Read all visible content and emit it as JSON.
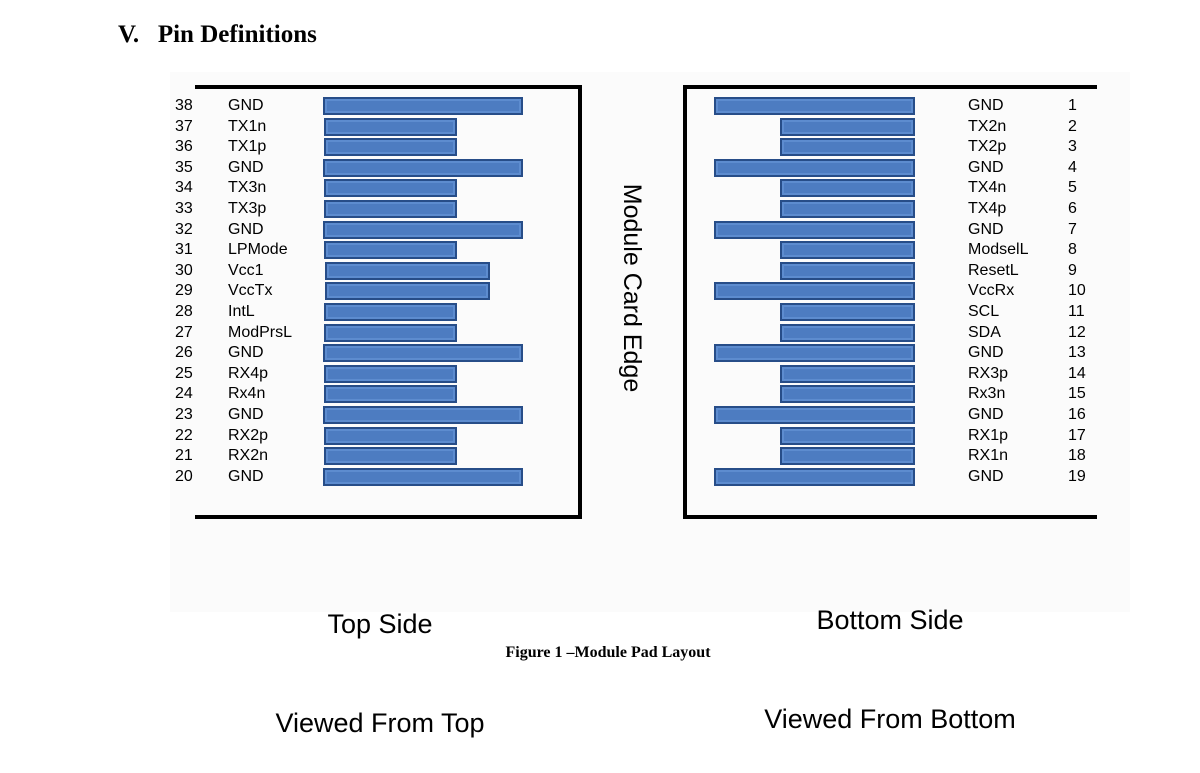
{
  "section_heading": "V.   Pin Definitions",
  "figure_caption": "Figure 1 –Module Pad Layout",
  "diagram": {
    "card_edge_label": "Module Card Edge",
    "top_side": {
      "title_line1": "Top Side",
      "title_line2": "Viewed From Top",
      "pins": [
        {
          "number": "38",
          "signal": "GND",
          "pad": "long"
        },
        {
          "number": "37",
          "signal": "TX1n",
          "pad": "short"
        },
        {
          "number": "36",
          "signal": "TX1p",
          "pad": "short"
        },
        {
          "number": "35",
          "signal": "GND",
          "pad": "long"
        },
        {
          "number": "34",
          "signal": "TX3n",
          "pad": "short"
        },
        {
          "number": "33",
          "signal": "TX3p",
          "pad": "short"
        },
        {
          "number": "32",
          "signal": "GND",
          "pad": "long"
        },
        {
          "number": "31",
          "signal": "LPMode",
          "pad": "short"
        },
        {
          "number": "30",
          "signal": "Vcc1",
          "pad": "medium"
        },
        {
          "number": "29",
          "signal": "VccTx",
          "pad": "medium"
        },
        {
          "number": "28",
          "signal": "IntL",
          "pad": "short"
        },
        {
          "number": "27",
          "signal": "ModPrsL",
          "pad": "short"
        },
        {
          "number": "26",
          "signal": "GND",
          "pad": "long"
        },
        {
          "number": "25",
          "signal": "RX4p",
          "pad": "short"
        },
        {
          "number": "24",
          "signal": "Rx4n",
          "pad": "short"
        },
        {
          "number": "23",
          "signal": "GND",
          "pad": "long"
        },
        {
          "number": "22",
          "signal": "RX2p",
          "pad": "short"
        },
        {
          "number": "21",
          "signal": "RX2n",
          "pad": "short"
        },
        {
          "number": "20",
          "signal": "GND",
          "pad": "long"
        }
      ]
    },
    "bottom_side": {
      "title_line1": "Bottom Side",
      "title_line2": "Viewed From Bottom",
      "pins": [
        {
          "number": "1",
          "signal": "GND",
          "pad": "long"
        },
        {
          "number": "2",
          "signal": "TX2n",
          "pad": "short"
        },
        {
          "number": "3",
          "signal": "TX2p",
          "pad": "short"
        },
        {
          "number": "4",
          "signal": "GND",
          "pad": "long"
        },
        {
          "number": "5",
          "signal": "TX4n",
          "pad": "short"
        },
        {
          "number": "6",
          "signal": "TX4p",
          "pad": "short"
        },
        {
          "number": "7",
          "signal": "GND",
          "pad": "long"
        },
        {
          "number": "8",
          "signal": "ModselL",
          "pad": "short"
        },
        {
          "number": "9",
          "signal": "ResetL",
          "pad": "short"
        },
        {
          "number": "10",
          "signal": "VccRx",
          "pad": "long"
        },
        {
          "number": "11",
          "signal": "SCL",
          "pad": "short"
        },
        {
          "number": "12",
          "signal": "SDA",
          "pad": "short"
        },
        {
          "number": "13",
          "signal": "GND",
          "pad": "long"
        },
        {
          "number": "14",
          "signal": "RX3p",
          "pad": "short"
        },
        {
          "number": "15",
          "signal": "Rx3n",
          "pad": "short"
        },
        {
          "number": "16",
          "signal": "GND",
          "pad": "long"
        },
        {
          "number": "17",
          "signal": "RX1p",
          "pad": "short"
        },
        {
          "number": "18",
          "signal": "RX1n",
          "pad": "short"
        },
        {
          "number": "19",
          "signal": "GND",
          "pad": "long"
        }
      ]
    }
  }
}
